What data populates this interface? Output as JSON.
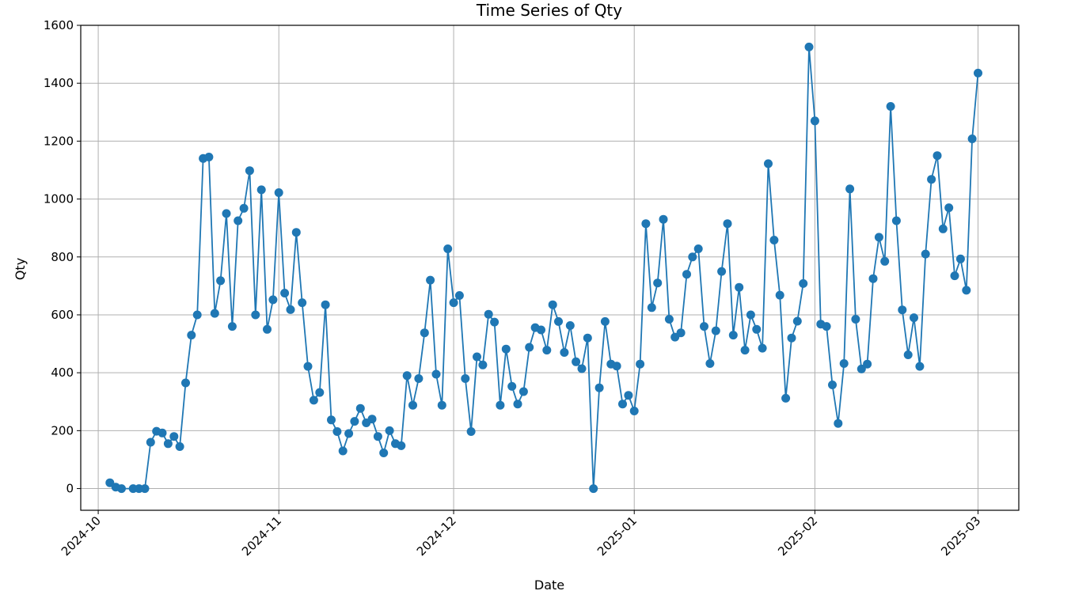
{
  "chart_data": {
    "type": "line",
    "title": "Time Series of Qty",
    "xlabel": "Date",
    "ylabel": "Qty",
    "x_type": "date",
    "xlim": [
      "2024-09-28",
      "2025-03-08"
    ],
    "ylim": [
      -75,
      1600
    ],
    "x_ticks": [
      "2024-10-01",
      "2024-11-01",
      "2024-12-01",
      "2025-01-01",
      "2025-02-01",
      "2025-03-01"
    ],
    "x_tick_labels": [
      "2024-10",
      "2024-11",
      "2024-12",
      "2025-01",
      "2025-02",
      "2025-03"
    ],
    "y_ticks": [
      0,
      200,
      400,
      600,
      800,
      1000,
      1200,
      1400,
      1600
    ],
    "grid": true,
    "marker": "circle",
    "line_color": "#1f77b4",
    "series": [
      {
        "x": [
          "2024-10-03",
          "2024-10-04",
          "2024-10-05",
          "2024-10-07",
          "2024-10-08",
          "2024-10-09",
          "2024-10-10",
          "2024-10-11",
          "2024-10-12",
          "2024-10-13",
          "2024-10-14",
          "2024-10-15",
          "2024-10-16",
          "2024-10-17",
          "2024-10-18",
          "2024-10-19",
          "2024-10-20",
          "2024-10-21",
          "2024-10-22",
          "2024-10-23",
          "2024-10-24",
          "2024-10-25",
          "2024-10-26",
          "2024-10-27",
          "2024-10-28",
          "2024-10-29",
          "2024-10-30",
          "2024-10-31",
          "2024-11-01",
          "2024-11-02",
          "2024-11-03",
          "2024-11-04",
          "2024-11-05",
          "2024-11-06",
          "2024-11-07",
          "2024-11-08",
          "2024-11-09",
          "2024-11-10",
          "2024-11-11",
          "2024-11-12",
          "2024-11-13",
          "2024-11-14",
          "2024-11-15",
          "2024-11-16",
          "2024-11-17",
          "2024-11-18",
          "2024-11-19",
          "2024-11-20",
          "2024-11-21",
          "2024-11-22",
          "2024-11-23",
          "2024-11-24",
          "2024-11-25",
          "2024-11-26",
          "2024-11-27",
          "2024-11-28",
          "2024-11-29",
          "2024-11-30",
          "2024-12-01",
          "2024-12-02",
          "2024-12-03",
          "2024-12-04",
          "2024-12-05",
          "2024-12-06",
          "2024-12-07",
          "2024-12-08",
          "2024-12-09",
          "2024-12-10",
          "2024-12-11",
          "2024-12-12",
          "2024-12-13",
          "2024-12-14",
          "2024-12-15",
          "2024-12-16",
          "2024-12-17",
          "2024-12-18",
          "2024-12-19",
          "2024-12-20",
          "2024-12-21",
          "2024-12-22",
          "2024-12-23",
          "2024-12-24",
          "2024-12-25",
          "2024-12-26",
          "2024-12-27",
          "2024-12-28",
          "2024-12-29",
          "2024-12-30",
          "2024-12-31",
          "2025-01-01",
          "2025-01-02",
          "2025-01-03",
          "2025-01-04",
          "2025-01-05",
          "2025-01-06",
          "2025-01-07",
          "2025-01-08",
          "2025-01-09",
          "2025-01-10",
          "2025-01-11",
          "2025-01-12",
          "2025-01-13",
          "2025-01-14",
          "2025-01-15",
          "2025-01-16",
          "2025-01-17",
          "2025-01-18",
          "2025-01-19",
          "2025-01-20",
          "2025-01-21",
          "2025-01-22",
          "2025-01-23",
          "2025-01-24",
          "2025-01-25",
          "2025-01-26",
          "2025-01-27",
          "2025-01-28",
          "2025-01-29",
          "2025-01-30",
          "2025-01-31",
          "2025-02-01",
          "2025-02-02",
          "2025-02-03",
          "2025-02-04",
          "2025-02-05",
          "2025-02-06",
          "2025-02-07",
          "2025-02-08",
          "2025-02-09",
          "2025-02-10",
          "2025-02-11",
          "2025-02-12",
          "2025-02-13",
          "2025-02-14",
          "2025-02-15",
          "2025-02-16",
          "2025-02-17",
          "2025-02-18",
          "2025-02-19",
          "2025-02-20",
          "2025-02-21",
          "2025-02-22",
          "2025-02-23",
          "2025-02-24",
          "2025-02-25",
          "2025-02-26",
          "2025-02-27",
          "2025-02-28",
          "2025-03-01"
        ],
        "y": [
          20,
          5,
          0,
          0,
          0,
          0,
          160,
          198,
          192,
          155,
          180,
          145,
          365,
          530,
          600,
          1140,
          1145,
          605,
          718,
          950,
          560,
          925,
          968,
          1098,
          600,
          1032,
          550,
          652,
          1022,
          675,
          618,
          885,
          642,
          422,
          305,
          332,
          635,
          237,
          197,
          130,
          190,
          232,
          277,
          227,
          240,
          180,
          123,
          200,
          155,
          148,
          390,
          288,
          380,
          538,
          720,
          395,
          288,
          828,
          642,
          667,
          380,
          197,
          455,
          427,
          602,
          575,
          288,
          482,
          353,
          292,
          335,
          488,
          556,
          548,
          478,
          635,
          577,
          470,
          563,
          438,
          414,
          520,
          0,
          348,
          577,
          430,
          423,
          292,
          322,
          268,
          430,
          915,
          625,
          710,
          930,
          585,
          523,
          538,
          740,
          800,
          828,
          560,
          432,
          545,
          750,
          915,
          530,
          695,
          478,
          600,
          550,
          485,
          1122,
          858,
          668,
          312,
          520,
          578,
          708,
          1525,
          1270,
          568,
          560,
          358,
          225,
          432,
          1035,
          585,
          413,
          430,
          725,
          868,
          785,
          1320,
          925,
          617,
          462,
          590,
          422,
          810,
          1068,
          1150,
          897,
          970,
          735,
          793,
          685,
          1208,
          1435
        ]
      }
    ]
  }
}
